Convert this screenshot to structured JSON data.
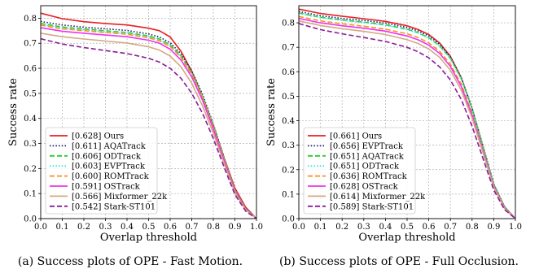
{
  "chart_data": [
    {
      "type": "line",
      "caption": "(a) Success plots of OPE - Fast Motion.",
      "xlabel": "Overlap threshold",
      "ylabel": "Success rate",
      "xlim": [
        0,
        1
      ],
      "ylim": [
        0,
        0.85
      ],
      "xticks": [
        "0.0",
        "0.1",
        "0.2",
        "0.3",
        "0.4",
        "0.5",
        "0.6",
        "0.7",
        "0.8",
        "0.9",
        "1.0"
      ],
      "yticks": [
        "0.0",
        "0.1",
        "0.2",
        "0.3",
        "0.4",
        "0.5",
        "0.6",
        "0.7",
        "0.8"
      ],
      "grid": true,
      "legend_position": "lower-left",
      "series": [
        {
          "name": "[0.628] Ours",
          "color": "#e8201f",
          "dash": "solid",
          "x": [
            0,
            0.1,
            0.2,
            0.3,
            0.4,
            0.5,
            0.55,
            0.6,
            0.65,
            0.7,
            0.75,
            0.8,
            0.85,
            0.9,
            0.95,
            1.0
          ],
          "y": [
            0.82,
            0.798,
            0.786,
            0.779,
            0.773,
            0.76,
            0.75,
            0.725,
            0.668,
            0.588,
            0.487,
            0.372,
            0.242,
            0.122,
            0.045,
            0.0
          ]
        },
        {
          "name": "[0.611] AQATrack",
          "color": "#1a1a70",
          "dash": "dotted",
          "x": [
            0,
            0.1,
            0.2,
            0.3,
            0.4,
            0.5,
            0.55,
            0.6,
            0.65,
            0.7,
            0.75,
            0.8,
            0.85,
            0.9,
            0.95,
            1.0
          ],
          "y": [
            0.787,
            0.773,
            0.764,
            0.758,
            0.751,
            0.737,
            0.725,
            0.702,
            0.658,
            0.59,
            0.496,
            0.377,
            0.243,
            0.117,
            0.04,
            0.0
          ]
        },
        {
          "name": "[0.606] ODTrack",
          "color": "#2cc92c",
          "dash": "dashed",
          "x": [
            0,
            0.1,
            0.2,
            0.3,
            0.4,
            0.5,
            0.55,
            0.6,
            0.65,
            0.7,
            0.75,
            0.8,
            0.85,
            0.9,
            0.95,
            1.0
          ],
          "y": [
            0.779,
            0.765,
            0.757,
            0.75,
            0.743,
            0.729,
            0.717,
            0.694,
            0.65,
            0.582,
            0.488,
            0.371,
            0.24,
            0.115,
            0.04,
            0.0
          ]
        },
        {
          "name": "[0.603] EVPTrack",
          "color": "#33e6e6",
          "dash": "dotted",
          "x": [
            0,
            0.1,
            0.2,
            0.3,
            0.4,
            0.5,
            0.55,
            0.6,
            0.65,
            0.7,
            0.75,
            0.8,
            0.85,
            0.9,
            0.95,
            1.0
          ],
          "y": [
            0.775,
            0.761,
            0.753,
            0.746,
            0.739,
            0.725,
            0.713,
            0.69,
            0.647,
            0.579,
            0.485,
            0.368,
            0.238,
            0.114,
            0.039,
            0.0
          ]
        },
        {
          "name": "[0.600] ROMTrack",
          "color": "#ff8c1a",
          "dash": "dashed",
          "x": [
            0,
            0.1,
            0.2,
            0.3,
            0.4,
            0.5,
            0.55,
            0.6,
            0.65,
            0.7,
            0.75,
            0.8,
            0.85,
            0.9,
            0.95,
            1.0
          ],
          "y": [
            0.772,
            0.758,
            0.75,
            0.743,
            0.736,
            0.722,
            0.71,
            0.687,
            0.644,
            0.576,
            0.482,
            0.366,
            0.236,
            0.113,
            0.038,
            0.0
          ]
        },
        {
          "name": "[0.591] OSTrack",
          "color": "#ee33ee",
          "dash": "solid",
          "x": [
            0,
            0.1,
            0.2,
            0.3,
            0.4,
            0.5,
            0.55,
            0.6,
            0.65,
            0.7,
            0.75,
            0.8,
            0.85,
            0.9,
            0.95,
            1.0
          ],
          "y": [
            0.762,
            0.748,
            0.74,
            0.733,
            0.726,
            0.712,
            0.7,
            0.676,
            0.633,
            0.565,
            0.472,
            0.357,
            0.23,
            0.11,
            0.037,
            0.0
          ]
        },
        {
          "name": "[0.566] Mixformer_22k",
          "color": "#d2aa82",
          "dash": "solid",
          "x": [
            0,
            0.1,
            0.2,
            0.3,
            0.4,
            0.5,
            0.55,
            0.6,
            0.65,
            0.7,
            0.75,
            0.8,
            0.85,
            0.9,
            0.95,
            1.0
          ],
          "y": [
            0.74,
            0.726,
            0.717,
            0.709,
            0.701,
            0.686,
            0.673,
            0.649,
            0.606,
            0.54,
            0.45,
            0.341,
            0.22,
            0.104,
            0.035,
            0.0
          ]
        },
        {
          "name": "[0.542] Stark-ST101",
          "color": "#8a1a9a",
          "dash": "dashed",
          "x": [
            0,
            0.1,
            0.2,
            0.3,
            0.4,
            0.5,
            0.55,
            0.6,
            0.65,
            0.7,
            0.75,
            0.8,
            0.85,
            0.9,
            0.95,
            1.0
          ],
          "y": [
            0.718,
            0.697,
            0.683,
            0.671,
            0.659,
            0.64,
            0.625,
            0.6,
            0.56,
            0.5,
            0.42,
            0.32,
            0.205,
            0.096,
            0.03,
            0.0
          ]
        }
      ]
    },
    {
      "type": "line",
      "caption": "(b) Success plots of OPE - Full Occlusion.",
      "xlabel": "Overlap threshold",
      "ylabel": "Success rate",
      "xlim": [
        0,
        1
      ],
      "ylim": [
        0,
        0.87
      ],
      "xticks": [
        "0.0",
        "0.1",
        "0.2",
        "0.3",
        "0.4",
        "0.5",
        "0.6",
        "0.7",
        "0.8",
        "0.9",
        "1.0"
      ],
      "yticks": [
        "0.0",
        "0.1",
        "0.2",
        "0.3",
        "0.4",
        "0.5",
        "0.6",
        "0.7",
        "0.8"
      ],
      "grid": true,
      "legend_position": "lower-left",
      "series": [
        {
          "name": "[0.661] Ours",
          "color": "#e8201f",
          "dash": "solid",
          "x": [
            0,
            0.1,
            0.2,
            0.3,
            0.4,
            0.5,
            0.55,
            0.6,
            0.65,
            0.7,
            0.75,
            0.8,
            0.85,
            0.9,
            0.95,
            1.0
          ],
          "y": [
            0.856,
            0.838,
            0.827,
            0.817,
            0.806,
            0.788,
            0.773,
            0.752,
            0.718,
            0.663,
            0.576,
            0.45,
            0.295,
            0.14,
            0.048,
            0.0
          ]
        },
        {
          "name": "[0.656] EVPTrack",
          "color": "#1a1a70",
          "dash": "dotted",
          "x": [
            0,
            0.1,
            0.2,
            0.3,
            0.4,
            0.5,
            0.55,
            0.6,
            0.65,
            0.7,
            0.75,
            0.8,
            0.85,
            0.9,
            0.95,
            1.0
          ],
          "y": [
            0.846,
            0.829,
            0.818,
            0.81,
            0.799,
            0.781,
            0.767,
            0.746,
            0.713,
            0.66,
            0.576,
            0.452,
            0.298,
            0.142,
            0.048,
            0.0
          ]
        },
        {
          "name": "[0.651] AQATrack",
          "color": "#2cc92c",
          "dash": "dashed",
          "x": [
            0,
            0.1,
            0.2,
            0.3,
            0.4,
            0.5,
            0.55,
            0.6,
            0.65,
            0.7,
            0.75,
            0.8,
            0.85,
            0.9,
            0.95,
            1.0
          ],
          "y": [
            0.84,
            0.823,
            0.812,
            0.803,
            0.792,
            0.774,
            0.76,
            0.739,
            0.707,
            0.655,
            0.572,
            0.45,
            0.297,
            0.142,
            0.048,
            0.0
          ]
        },
        {
          "name": "[0.651] ODTrack",
          "color": "#33e6e6",
          "dash": "dotted",
          "x": [
            0,
            0.1,
            0.2,
            0.3,
            0.4,
            0.5,
            0.55,
            0.6,
            0.65,
            0.7,
            0.75,
            0.8,
            0.85,
            0.9,
            0.95,
            1.0
          ],
          "y": [
            0.838,
            0.821,
            0.81,
            0.801,
            0.79,
            0.772,
            0.758,
            0.737,
            0.705,
            0.653,
            0.57,
            0.448,
            0.295,
            0.141,
            0.047,
            0.0
          ]
        },
        {
          "name": "[0.636] ROMTrack",
          "color": "#ff8c1a",
          "dash": "dashed",
          "x": [
            0,
            0.1,
            0.2,
            0.3,
            0.4,
            0.5,
            0.55,
            0.6,
            0.65,
            0.7,
            0.75,
            0.8,
            0.85,
            0.9,
            0.95,
            1.0
          ],
          "y": [
            0.826,
            0.808,
            0.796,
            0.786,
            0.774,
            0.755,
            0.74,
            0.718,
            0.684,
            0.631,
            0.549,
            0.431,
            0.284,
            0.135,
            0.044,
            0.0
          ]
        },
        {
          "name": "[0.628] OSTrack",
          "color": "#ee33ee",
          "dash": "solid",
          "x": [
            0,
            0.1,
            0.2,
            0.3,
            0.4,
            0.5,
            0.55,
            0.6,
            0.65,
            0.7,
            0.75,
            0.8,
            0.85,
            0.9,
            0.95,
            1.0
          ],
          "y": [
            0.818,
            0.8,
            0.788,
            0.778,
            0.766,
            0.746,
            0.731,
            0.709,
            0.675,
            0.622,
            0.54,
            0.423,
            0.278,
            0.132,
            0.043,
            0.0
          ]
        },
        {
          "name": "[0.614] Mixformer_22k",
          "color": "#d2aa82",
          "dash": "solid",
          "x": [
            0,
            0.1,
            0.2,
            0.3,
            0.4,
            0.5,
            0.55,
            0.6,
            0.65,
            0.7,
            0.75,
            0.8,
            0.85,
            0.9,
            0.95,
            1.0
          ],
          "y": [
            0.808,
            0.789,
            0.776,
            0.765,
            0.752,
            0.731,
            0.716,
            0.693,
            0.659,
            0.606,
            0.525,
            0.411,
            0.27,
            0.128,
            0.041,
            0.0
          ]
        },
        {
          "name": "[0.589] Stark-ST101",
          "color": "#8a1a9a",
          "dash": "dashed",
          "x": [
            0,
            0.1,
            0.2,
            0.3,
            0.4,
            0.5,
            0.55,
            0.6,
            0.65,
            0.7,
            0.75,
            0.8,
            0.85,
            0.9,
            0.95,
            1.0
          ],
          "y": [
            0.797,
            0.772,
            0.755,
            0.74,
            0.724,
            0.7,
            0.682,
            0.657,
            0.62,
            0.566,
            0.487,
            0.378,
            0.247,
            0.117,
            0.037,
            0.0
          ]
        }
      ]
    }
  ]
}
